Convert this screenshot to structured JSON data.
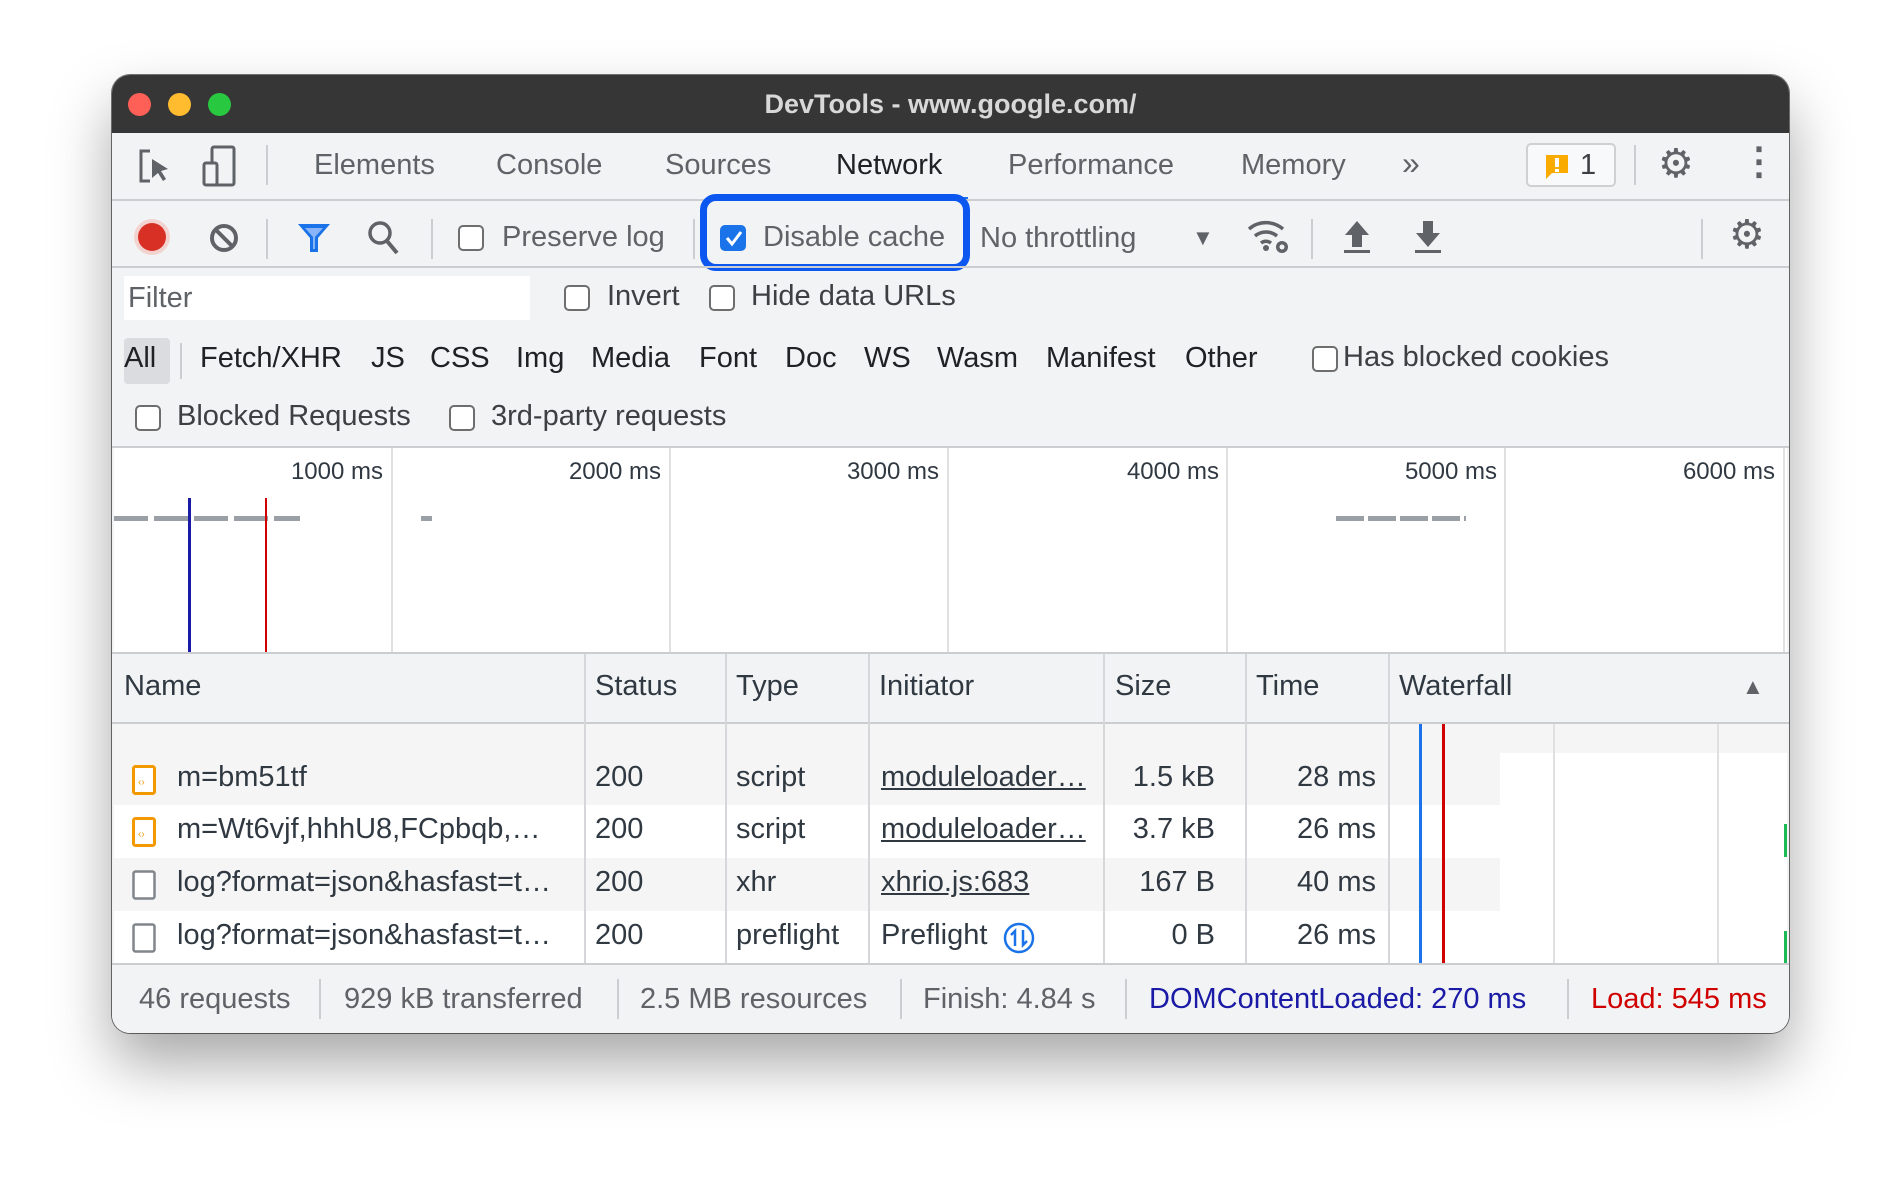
{
  "window": {
    "title": "DevTools - www.google.com/"
  },
  "tabs": [
    {
      "label": "Elements"
    },
    {
      "label": "Console"
    },
    {
      "label": "Sources"
    },
    {
      "label": "Network",
      "active": true
    },
    {
      "label": "Performance"
    },
    {
      "label": "Memory"
    }
  ],
  "tabbar": {
    "more": "»",
    "issues_count": "1"
  },
  "toolbar": {
    "preserve_log": "Preserve log",
    "preserve_log_checked": false,
    "disable_cache": "Disable cache",
    "disable_cache_checked": true,
    "throttling": "No throttling"
  },
  "filter": {
    "placeholder": "Filter",
    "invert": "Invert",
    "hide_data_urls": "Hide data URLs"
  },
  "types": [
    "All",
    "Fetch/XHR",
    "JS",
    "CSS",
    "Img",
    "Media",
    "Font",
    "Doc",
    "WS",
    "Wasm",
    "Manifest",
    "Other"
  ],
  "has_blocked_cookies": "Has blocked cookies",
  "blocked_requests": "Blocked Requests",
  "third_party": "3rd-party requests",
  "overview": {
    "ticks": [
      "1000 ms",
      "2000 ms",
      "3000 ms",
      "4000 ms",
      "5000 ms",
      "6000 ms"
    ]
  },
  "table": {
    "columns": [
      "Name",
      "Status",
      "Type",
      "Initiator",
      "Size",
      "Time",
      "Waterfall"
    ],
    "rows": [
      {
        "icon": "script",
        "name": "m=bm51tf",
        "status": "200",
        "type": "script",
        "initiator": "moduleloader…",
        "size": "1.5 kB",
        "time": "28 ms"
      },
      {
        "icon": "script",
        "name": "m=Wt6vjf,hhhU8,FCpbqb,…",
        "status": "200",
        "type": "script",
        "initiator": "moduleloader…",
        "size": "3.7 kB",
        "time": "26 ms"
      },
      {
        "icon": "document",
        "name": "log?format=json&hasfast=t…",
        "status": "200",
        "type": "xhr",
        "initiator": "xhrio.js:683",
        "size": "167 B",
        "time": "40 ms"
      },
      {
        "icon": "document",
        "name": "log?format=json&hasfast=t…",
        "status": "200",
        "type": "preflight",
        "initiator": "Preflight",
        "size": "0 B",
        "time": "26 ms"
      }
    ]
  },
  "summary": {
    "requests": "46 requests",
    "transferred": "929 kB transferred",
    "resources": "2.5 MB resources",
    "finish": "Finish: 4.84 s",
    "dcl": "DOMContentLoaded: 270 ms",
    "load": "Load: 545 ms"
  },
  "colors": {
    "accent": "#1a73e8",
    "highlight": "#0b57f0",
    "dcl": "#1a1aa6",
    "load": "#d00000",
    "record": "#d93025"
  }
}
